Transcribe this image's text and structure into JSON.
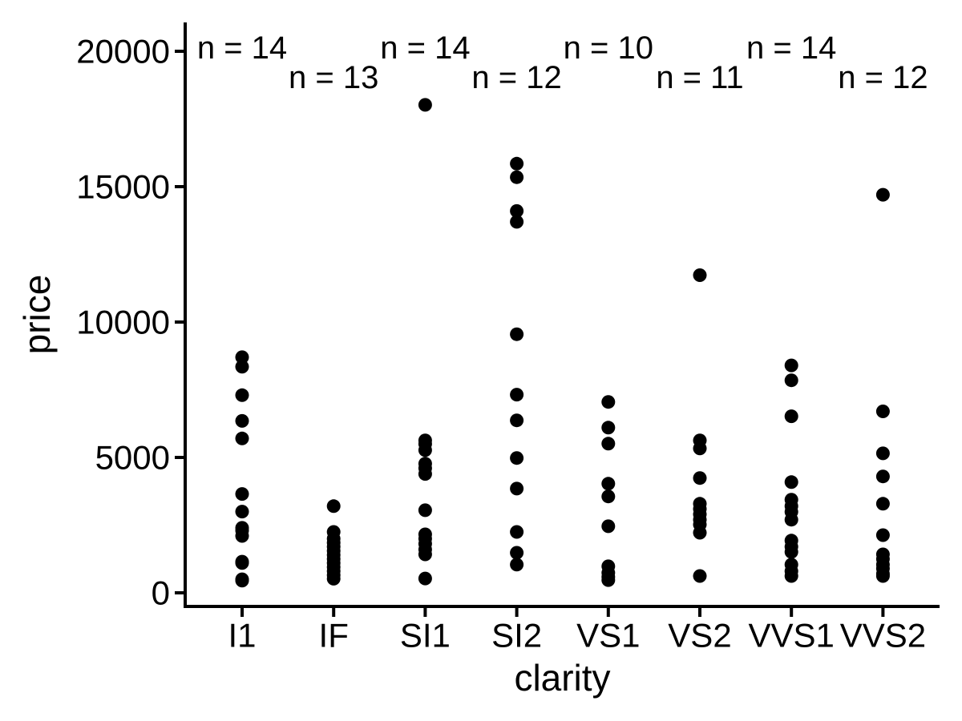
{
  "figure": {
    "background": "#FFFFFF",
    "foreground": "#000000"
  },
  "chart_data": {
    "type": "scatter",
    "subtype": "strip-plot (jitter-free dot column plot, ggplot2 style)",
    "title": "",
    "xlabel": "clarity",
    "ylabel": "price",
    "categories": [
      "I1",
      "IF",
      "SI1",
      "SI2",
      "VS1",
      "VS2",
      "VVS1",
      "VVS2"
    ],
    "y_ticks": [
      0,
      5000,
      10000,
      15000,
      20000
    ],
    "ylim": [
      -600,
      20600
    ],
    "grid": false,
    "legend": false,
    "point_color": "#000000",
    "annotations": [
      {
        "label": "n = 14",
        "category": "I1",
        "row": 0
      },
      {
        "label": "n = 13",
        "category": "IF",
        "row": 1
      },
      {
        "label": "n = 14",
        "category": "SI1",
        "row": 0
      },
      {
        "label": "n = 12",
        "category": "SI2",
        "row": 1
      },
      {
        "label": "n = 10",
        "category": "VS1",
        "row": 0
      },
      {
        "label": "n = 11",
        "category": "VS2",
        "row": 1
      },
      {
        "label": "n = 14",
        "category": "VVS1",
        "row": 0
      },
      {
        "label": "n = 12",
        "category": "VVS2",
        "row": 1
      }
    ],
    "series": [
      {
        "name": "I1",
        "n": 14,
        "prices": [
          8700,
          8350,
          7300,
          6350,
          5700,
          3650,
          3000,
          2400,
          2300,
          2100,
          1150,
          1100,
          500,
          450
        ]
      },
      {
        "name": "IF",
        "n": 13,
        "prices": [
          3200,
          2250,
          2000,
          1850,
          1700,
          1550,
          1400,
          1250,
          1100,
          950,
          800,
          650,
          520
        ]
      },
      {
        "name": "SI1",
        "n": 14,
        "prices": [
          18020,
          5630,
          5500,
          5270,
          4770,
          4600,
          4390,
          3050,
          2160,
          2000,
          1810,
          1600,
          1420,
          530
        ]
      },
      {
        "name": "SI2",
        "n": 12,
        "prices": [
          15850,
          15350,
          14100,
          13700,
          9550,
          7320,
          6370,
          4980,
          3850,
          2250,
          1480,
          1040
        ]
      },
      {
        "name": "VS1",
        "n": 10,
        "prices": [
          7050,
          6100,
          5510,
          4030,
          3560,
          2460,
          980,
          740,
          590,
          470
        ]
      },
      {
        "name": "VS2",
        "n": 11,
        "prices": [
          11730,
          5630,
          5330,
          4240,
          3290,
          3100,
          2900,
          2700,
          2520,
          2220,
          620
        ]
      },
      {
        "name": "VVS1",
        "n": 14,
        "prices": [
          8400,
          7850,
          6520,
          4090,
          3440,
          3200,
          2990,
          2700,
          1930,
          1700,
          1510,
          1040,
          800,
          620
        ]
      },
      {
        "name": "VVS2",
        "n": 12,
        "prices": [
          14700,
          6700,
          5150,
          4300,
          3290,
          2130,
          1420,
          1250,
          1040,
          900,
          700,
          620
        ]
      }
    ]
  }
}
